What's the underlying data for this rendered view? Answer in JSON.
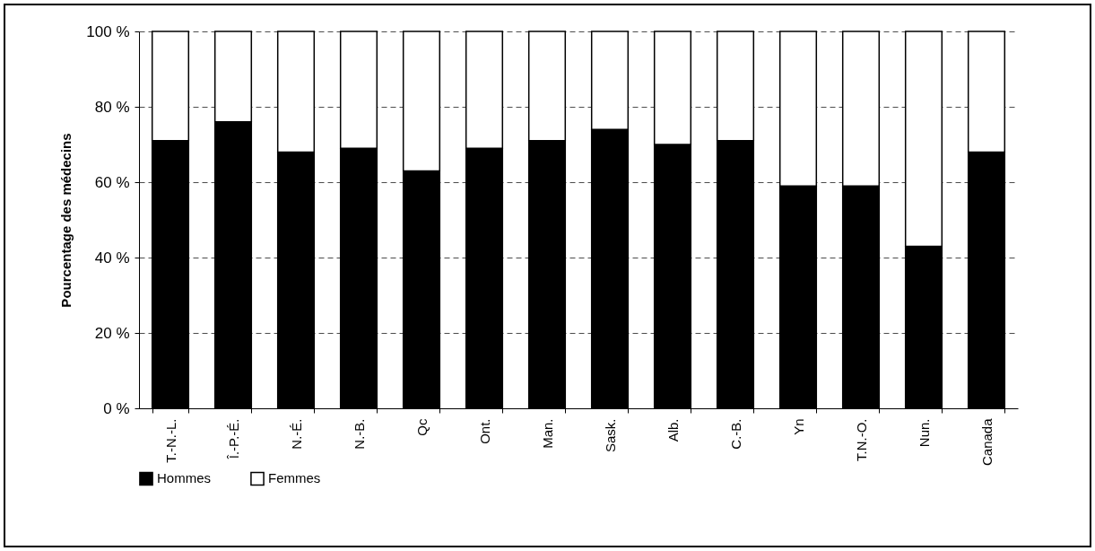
{
  "chart_data": {
    "type": "bar",
    "ylabel": "Pourcentage des médecins",
    "stacked": true,
    "grid": "y",
    "legend": "bottom",
    "categories": [
      "T.-N.-L.",
      "Î.-P.-É.",
      "N.-É.",
      "N.-B.",
      "Qc",
      "Ont.",
      "Man.",
      "Sask.",
      "Alb.",
      "C.-B.",
      "Yn",
      "T.N.-O.",
      "Nun.",
      "Canada"
    ],
    "ylim": [
      0,
      100
    ],
    "yticks": [
      {
        "value": 0,
        "label": "0 %"
      },
      {
        "value": 20,
        "label": "20 %"
      },
      {
        "value": 40,
        "label": "40 %"
      },
      {
        "value": 60,
        "label": "60 %"
      },
      {
        "value": 80,
        "label": "80 %"
      },
      {
        "value": 100,
        "label": "100 %"
      }
    ],
    "series": [
      {
        "name": "Hommes",
        "color": "#000000",
        "values": [
          71,
          76,
          68,
          69,
          63,
          69,
          71,
          74,
          70,
          71,
          59,
          59,
          43,
          68
        ]
      },
      {
        "name": "Femmes",
        "color": "#ffffff",
        "values": [
          29,
          24,
          32,
          31,
          37,
          31,
          29,
          26,
          30,
          29,
          41,
          41,
          57,
          32
        ]
      }
    ]
  }
}
